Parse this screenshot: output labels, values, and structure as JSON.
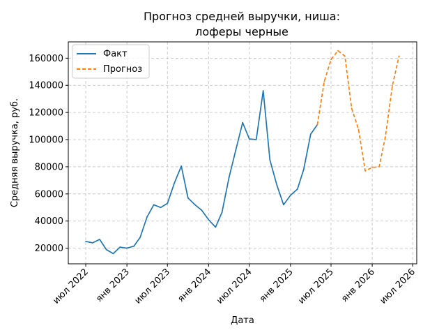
{
  "chart_data": {
    "type": "line",
    "title": "Прогноз средней выручки, ниша:",
    "subtitle": "лоферы черные",
    "xlabel": "Дата",
    "ylabel": "Средняя выручка, руб.",
    "grid": true,
    "legend_position": "top-left",
    "xlim": [
      "2022-04-14",
      "2026-07-19"
    ],
    "ylim": [
      8500,
      172000
    ],
    "x_ticks": [
      {
        "date": "2022-07-01",
        "label": "июл 2022"
      },
      {
        "date": "2023-01-01",
        "label": "янв 2023"
      },
      {
        "date": "2023-07-01",
        "label": "июл 2023"
      },
      {
        "date": "2024-01-01",
        "label": "янв 2024"
      },
      {
        "date": "2024-07-01",
        "label": "июл 2024"
      },
      {
        "date": "2025-01-01",
        "label": "янв 2025"
      },
      {
        "date": "2025-07-01",
        "label": "июл 2025"
      },
      {
        "date": "2026-01-01",
        "label": "янв 2026"
      },
      {
        "date": "2026-07-01",
        "label": "июл 2026"
      }
    ],
    "y_ticks": [
      {
        "value": 20000,
        "label": "20000"
      },
      {
        "value": 40000,
        "label": "40000"
      },
      {
        "value": 60000,
        "label": "60000"
      },
      {
        "value": 80000,
        "label": "80000"
      },
      {
        "value": 100000,
        "label": "100000"
      },
      {
        "value": 120000,
        "label": "120000"
      },
      {
        "value": 140000,
        "label": "140000"
      },
      {
        "value": 160000,
        "label": "160000"
      }
    ],
    "series": [
      {
        "name": "Факт",
        "color": "#1f77b4",
        "line_style": "solid",
        "points": [
          {
            "x": "2022-07-01",
            "y": 25000
          },
          {
            "x": "2022-08-01",
            "y": 24000
          },
          {
            "x": "2022-09-01",
            "y": 26500
          },
          {
            "x": "2022-10-01",
            "y": 19000
          },
          {
            "x": "2022-11-01",
            "y": 16000
          },
          {
            "x": "2022-12-01",
            "y": 20800
          },
          {
            "x": "2023-01-01",
            "y": 20000
          },
          {
            "x": "2023-02-01",
            "y": 21500
          },
          {
            "x": "2023-03-01",
            "y": 28000
          },
          {
            "x": "2023-04-01",
            "y": 43000
          },
          {
            "x": "2023-05-01",
            "y": 52000
          },
          {
            "x": "2023-06-01",
            "y": 50000
          },
          {
            "x": "2023-07-01",
            "y": 53000
          },
          {
            "x": "2023-08-01",
            "y": 68000
          },
          {
            "x": "2023-09-01",
            "y": 80500
          },
          {
            "x": "2023-10-01",
            "y": 57000
          },
          {
            "x": "2023-11-01",
            "y": 52000
          },
          {
            "x": "2023-12-01",
            "y": 48000
          },
          {
            "x": "2024-01-01",
            "y": 41000
          },
          {
            "x": "2024-02-01",
            "y": 35500
          },
          {
            "x": "2024-03-01",
            "y": 46500
          },
          {
            "x": "2024-04-01",
            "y": 72000
          },
          {
            "x": "2024-05-01",
            "y": 92000
          },
          {
            "x": "2024-06-01",
            "y": 112500
          },
          {
            "x": "2024-07-01",
            "y": 100500
          },
          {
            "x": "2024-08-01",
            "y": 100000
          },
          {
            "x": "2024-09-01",
            "y": 136000
          },
          {
            "x": "2024-10-01",
            "y": 85000
          },
          {
            "x": "2024-11-01",
            "y": 66500
          },
          {
            "x": "2024-12-01",
            "y": 52000
          },
          {
            "x": "2025-01-01",
            "y": 59000
          },
          {
            "x": "2025-02-01",
            "y": 63500
          },
          {
            "x": "2025-03-01",
            "y": 78000
          },
          {
            "x": "2025-04-01",
            "y": 104000
          },
          {
            "x": "2025-05-01",
            "y": 111000
          }
        ]
      },
      {
        "name": "Прогноз",
        "color": "#ff7f0e",
        "line_style": "dashed",
        "points": [
          {
            "x": "2025-05-01",
            "y": 111000
          },
          {
            "x": "2025-06-01",
            "y": 143000
          },
          {
            "x": "2025-07-01",
            "y": 159000
          },
          {
            "x": "2025-08-01",
            "y": 165500
          },
          {
            "x": "2025-09-01",
            "y": 161500
          },
          {
            "x": "2025-10-01",
            "y": 123000
          },
          {
            "x": "2025-11-01",
            "y": 107500
          },
          {
            "x": "2025-12-01",
            "y": 77000
          },
          {
            "x": "2026-01-01",
            "y": 79500
          },
          {
            "x": "2026-02-01",
            "y": 80000
          },
          {
            "x": "2026-03-01",
            "y": 102000
          },
          {
            "x": "2026-04-01",
            "y": 139500
          },
          {
            "x": "2026-05-01",
            "y": 161500
          }
        ]
      }
    ]
  }
}
